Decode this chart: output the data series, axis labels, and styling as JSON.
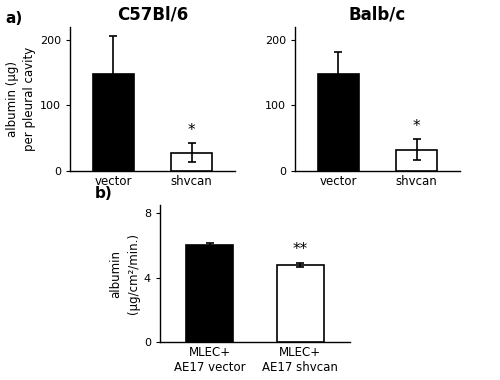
{
  "c57_values": [
    148,
    28
  ],
  "c57_errors": [
    57,
    14
  ],
  "c57_colors": [
    "black",
    "white"
  ],
  "c57_labels": [
    "vector",
    "shvcan"
  ],
  "c57_title": "C57Bl/6",
  "c57_ylim": [
    0,
    220
  ],
  "c57_yticks": [
    0,
    100,
    200
  ],
  "balb_values": [
    148,
    32
  ],
  "balb_errors": [
    33,
    16
  ],
  "balb_colors": [
    "black",
    "white"
  ],
  "balb_labels": [
    "vector",
    "shvcan"
  ],
  "balb_title": "Balb/c",
  "balb_ylim": [
    0,
    220
  ],
  "balb_yticks": [
    0,
    100,
    200
  ],
  "b_values": [
    6.0,
    4.8
  ],
  "b_errors": [
    0.18,
    0.12
  ],
  "b_colors": [
    "black",
    "white"
  ],
  "b_labels": [
    "MLEC+\nAE17 vector",
    "MLEC+\nAE17 shvcan"
  ],
  "b_ylim": [
    0,
    8.5
  ],
  "b_yticks": [
    0,
    4,
    8
  ],
  "ylabel_a": "albumin (μg)\nper pleural cavity",
  "ylabel_b": "albumin\n(μg/cm²/min.)",
  "panel_a_label": "a)",
  "panel_b_label": "b)",
  "bg_color": "white",
  "bar_edgecolor": "black",
  "bar_linewidth": 1.2,
  "errorbar_capsize": 3,
  "errorbar_linewidth": 1.2,
  "title_fontsize": 12,
  "label_fontsize": 8.5,
  "tick_fontsize": 8,
  "sig_fontsize": 11
}
